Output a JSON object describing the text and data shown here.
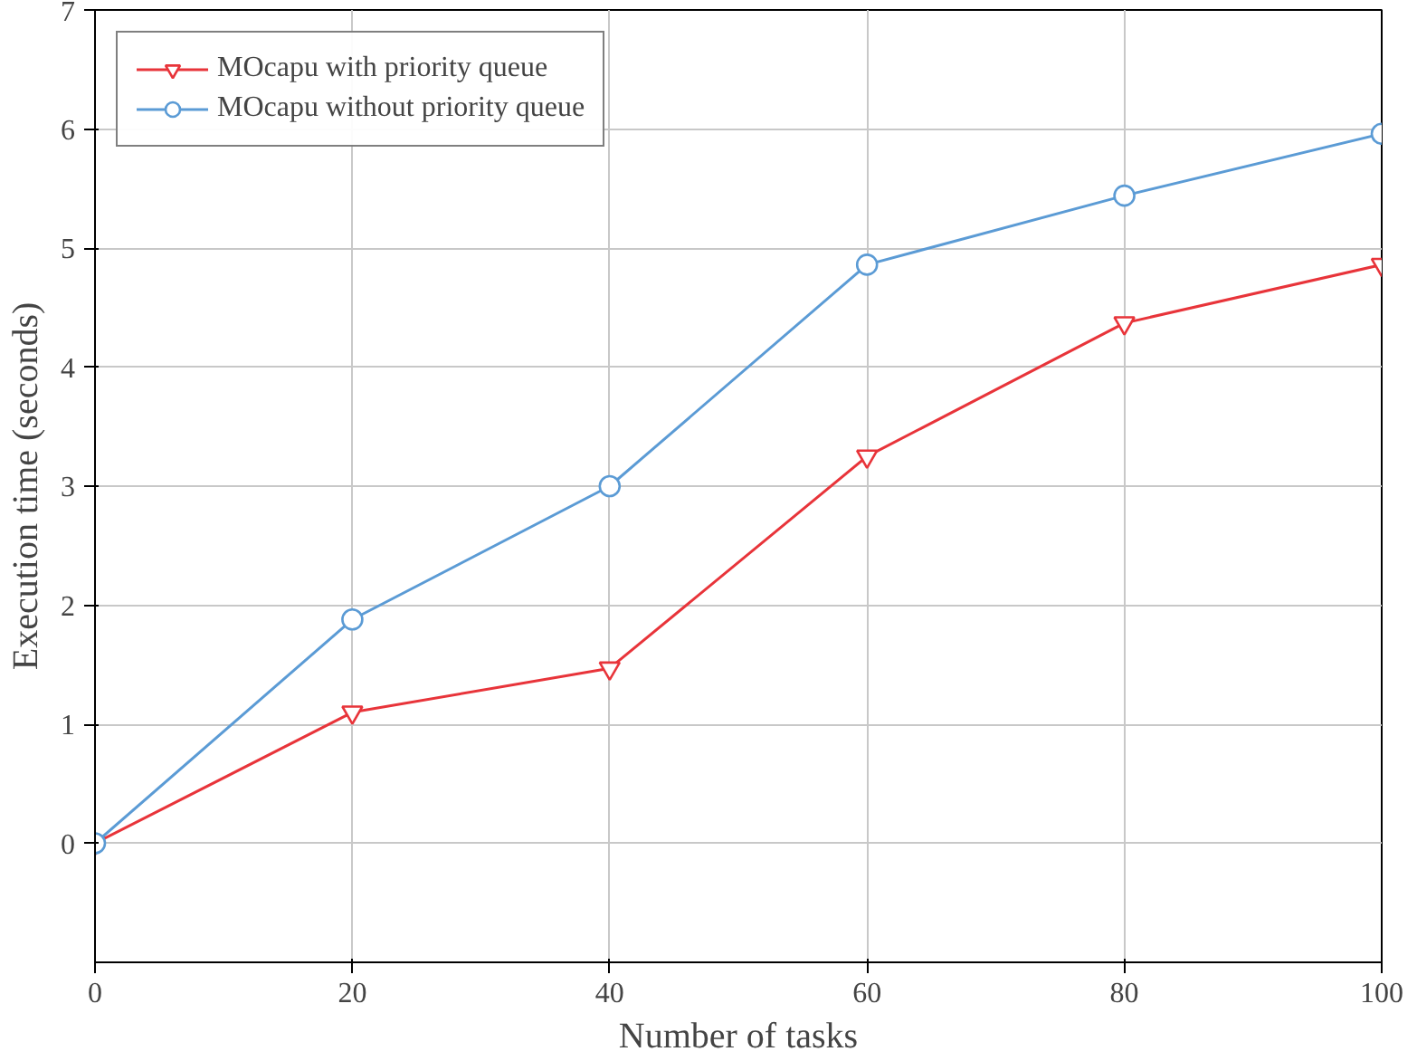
{
  "chart_data": {
    "type": "line",
    "xlabel": "Number of tasks",
    "ylabel": "Execution time (seconds)",
    "x": [
      0,
      20,
      40,
      60,
      80,
      100
    ],
    "series": [
      {
        "name": "MOcapu with priority queue",
        "color": "#e8343a",
        "marker": "triangle",
        "values": [
          0,
          1.1,
          1.47,
          3.25,
          4.37,
          4.86
        ]
      },
      {
        "name": "MOcapu without priority queue",
        "color": "#5b9bd5",
        "marker": "circle",
        "values": [
          0,
          1.88,
          3.0,
          4.86,
          5.44,
          5.96
        ]
      }
    ],
    "xlim": [
      0,
      100
    ],
    "xticks": [
      0,
      20,
      40,
      60,
      80,
      100
    ],
    "ylim": [
      -1,
      7
    ],
    "yticks": [
      0,
      1,
      2,
      3,
      4,
      5,
      6,
      7
    ],
    "grid": true,
    "legend": "top left",
    "line_style": "solid"
  }
}
